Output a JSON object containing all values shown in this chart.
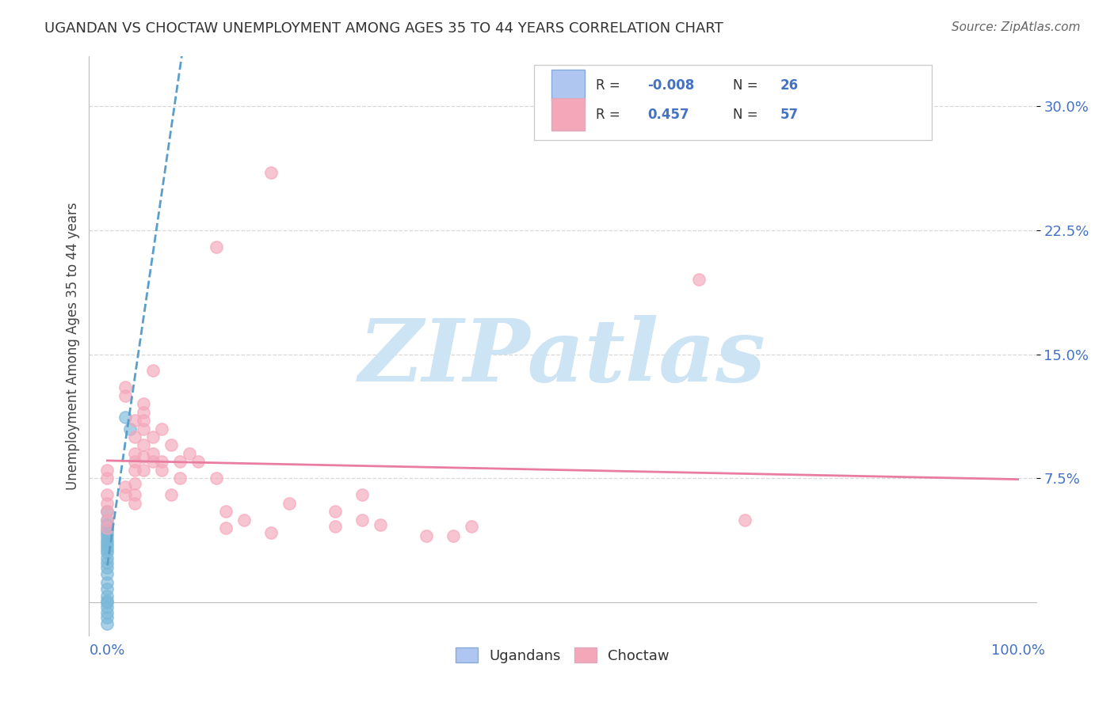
{
  "title": "UGANDAN VS CHOCTAW UNEMPLOYMENT AMONG AGES 35 TO 44 YEARS CORRELATION CHART",
  "source": "Source: ZipAtlas.com",
  "ylabel": "Unemployment Among Ages 35 to 44 years",
  "ytick_labels": [
    "7.5%",
    "15.0%",
    "22.5%",
    "30.0%"
  ],
  "ytick_values": [
    0.075,
    0.15,
    0.225,
    0.3
  ],
  "xlim": [
    -0.02,
    1.02
  ],
  "ylim": [
    -0.02,
    0.33
  ],
  "ugandan_points": [
    [
      0.0,
      0.055
    ],
    [
      0.0,
      0.05
    ],
    [
      0.0,
      0.047
    ],
    [
      0.0,
      0.044
    ],
    [
      0.0,
      0.042
    ],
    [
      0.0,
      0.04
    ],
    [
      0.0,
      0.038
    ],
    [
      0.0,
      0.036
    ],
    [
      0.0,
      0.034
    ],
    [
      0.0,
      0.032
    ],
    [
      0.0,
      0.03
    ],
    [
      0.0,
      0.027
    ],
    [
      0.0,
      0.024
    ],
    [
      0.0,
      0.021
    ],
    [
      0.0,
      0.017
    ],
    [
      0.0,
      0.012
    ],
    [
      0.0,
      0.008
    ],
    [
      0.0,
      0.004
    ],
    [
      0.0,
      0.001
    ],
    [
      0.02,
      0.112
    ],
    [
      0.025,
      0.105
    ],
    [
      0.0,
      0.0
    ],
    [
      0.0,
      -0.003
    ],
    [
      0.0,
      -0.006
    ],
    [
      0.0,
      -0.009
    ],
    [
      0.0,
      -0.013
    ]
  ],
  "choctaw_points": [
    [
      0.0,
      0.065
    ],
    [
      0.0,
      0.06
    ],
    [
      0.0,
      0.055
    ],
    [
      0.0,
      0.05
    ],
    [
      0.0,
      0.045
    ],
    [
      0.0,
      0.075
    ],
    [
      0.0,
      0.08
    ],
    [
      0.02,
      0.13
    ],
    [
      0.02,
      0.125
    ],
    [
      0.02,
      0.07
    ],
    [
      0.02,
      0.065
    ],
    [
      0.03,
      0.11
    ],
    [
      0.03,
      0.1
    ],
    [
      0.03,
      0.09
    ],
    [
      0.03,
      0.085
    ],
    [
      0.03,
      0.08
    ],
    [
      0.03,
      0.072
    ],
    [
      0.03,
      0.065
    ],
    [
      0.03,
      0.06
    ],
    [
      0.04,
      0.12
    ],
    [
      0.04,
      0.115
    ],
    [
      0.04,
      0.11
    ],
    [
      0.04,
      0.105
    ],
    [
      0.04,
      0.095
    ],
    [
      0.04,
      0.088
    ],
    [
      0.04,
      0.08
    ],
    [
      0.05,
      0.14
    ],
    [
      0.05,
      0.1
    ],
    [
      0.05,
      0.09
    ],
    [
      0.05,
      0.085
    ],
    [
      0.06,
      0.105
    ],
    [
      0.06,
      0.085
    ],
    [
      0.06,
      0.08
    ],
    [
      0.07,
      0.095
    ],
    [
      0.07,
      0.065
    ],
    [
      0.08,
      0.085
    ],
    [
      0.08,
      0.075
    ],
    [
      0.09,
      0.09
    ],
    [
      0.1,
      0.085
    ],
    [
      0.12,
      0.075
    ],
    [
      0.13,
      0.055
    ],
    [
      0.13,
      0.045
    ],
    [
      0.15,
      0.05
    ],
    [
      0.18,
      0.26
    ],
    [
      0.2,
      0.06
    ],
    [
      0.25,
      0.055
    ],
    [
      0.28,
      0.05
    ],
    [
      0.3,
      0.047
    ],
    [
      0.35,
      0.04
    ],
    [
      0.4,
      0.046
    ],
    [
      0.65,
      0.195
    ],
    [
      0.7,
      0.05
    ],
    [
      0.12,
      0.215
    ],
    [
      0.25,
      0.046
    ],
    [
      0.38,
      0.04
    ],
    [
      0.28,
      0.065
    ],
    [
      0.18,
      0.042
    ]
  ],
  "ugandan_color": "#7ab8d9",
  "choctaw_color": "#f4a7b9",
  "ugandan_line_color": "#5b9ec9",
  "choctaw_line_color": "#e87da0",
  "legend_box_color": "#aec6f0",
  "legend_pink_color": "#f4a7b9",
  "background_color": "#ffffff",
  "watermark_text": "ZIPatlas",
  "watermark_color": "#cde4f5",
  "title_color": "#333333",
  "source_color": "#666666",
  "axis_label_color": "#4472c4",
  "grid_color": "#d8d8d8",
  "r1": "-0.008",
  "n1": "26",
  "r2": "0.457",
  "n2": "57"
}
